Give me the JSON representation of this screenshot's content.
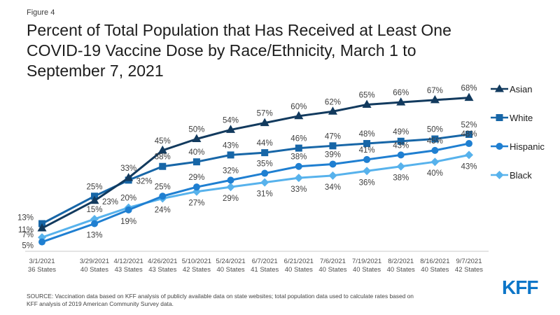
{
  "header": {
    "figure_label": "Figure 4",
    "title_lines": [
      "Percent of Total Population that Has Received at Least One",
      "COVID-19 Vaccine Dose by Race/Ethnicity, March 1 to",
      "September 7, 2021"
    ]
  },
  "footer": {
    "source_lines": [
      "SOURCE: Vaccination data based on KFF analysis of publicly available data on state websites; total population data used to calculate rates based on",
      "KFF analysis of 2019 American Community Survey data."
    ],
    "logo_text": "KFF"
  },
  "colors": {
    "asian": "#123a5e",
    "white": "#1766a7",
    "hispanic": "#1f7fd1",
    "black": "#57b2ec",
    "axis_line": "#c9c9c9",
    "value_label": "#3e3e3e",
    "tick_label": "#4d4d4d",
    "kff_blue": "#0d76c8"
  },
  "chart_data": {
    "type": "line",
    "title": "Percent of Total Population that Has Received at Least One COVID-19 Vaccine Dose by Race/Ethnicity, March 1 to September 7, 2021",
    "grid": false,
    "legend_position": "right",
    "ylim": [
      0,
      75
    ],
    "value_label_format": "percent",
    "x": [
      {
        "date": "3/1/2021",
        "states": "36 States"
      },
      {
        "date": "3/29/2021",
        "states": "40 States"
      },
      {
        "date": "4/12/2021",
        "states": "43 States"
      },
      {
        "date": "4/26/2021",
        "states": "43 States"
      },
      {
        "date": "5/10/2021",
        "states": "42 States"
      },
      {
        "date": "5/24/2021",
        "states": "40 States"
      },
      {
        "date": "6/7/2021",
        "states": "41 States"
      },
      {
        "date": "6/21/2021",
        "states": "40 States"
      },
      {
        "date": "7/6/2021",
        "states": "40 States"
      },
      {
        "date": "7/19/2021",
        "states": "40 States"
      },
      {
        "date": "8/2/2021",
        "states": "40 States"
      },
      {
        "date": "8/16/2021",
        "states": "40 States"
      },
      {
        "date": "9/7/2021",
        "states": "42 States"
      }
    ],
    "series": [
      {
        "name": "Asian",
        "marker": "triangle",
        "color": "#123a5e",
        "values": [
          11,
          23,
          33,
          45,
          50,
          54,
          57,
          60,
          62,
          65,
          66,
          67,
          68
        ]
      },
      {
        "name": "White",
        "marker": "square",
        "color": "#1766a7",
        "values": [
          13,
          25,
          32,
          38,
          40,
          43,
          44,
          46,
          47,
          48,
          49,
          50,
          52
        ]
      },
      {
        "name": "Hispanic",
        "marker": "circle",
        "color": "#1f7fd1",
        "values": [
          5,
          13,
          19,
          25,
          29,
          32,
          35,
          38,
          39,
          41,
          43,
          45,
          48
        ]
      },
      {
        "name": "Black",
        "marker": "diamond",
        "color": "#57b2ec",
        "values": [
          7,
          15,
          20,
          24,
          27,
          29,
          31,
          33,
          34,
          36,
          38,
          40,
          43
        ]
      }
    ]
  }
}
